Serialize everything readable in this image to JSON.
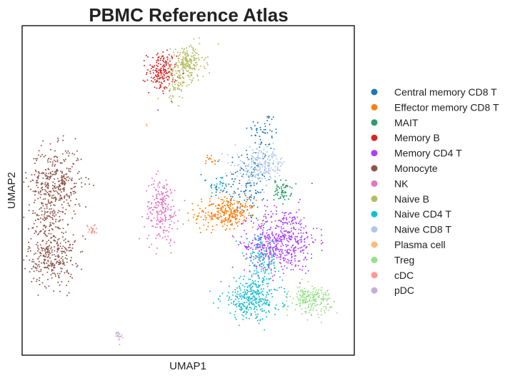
{
  "chart_data": {
    "type": "scatter",
    "title": "PBMC Reference Atlas",
    "xlabel": "UMAP1",
    "ylabel": "UMAP2",
    "xlim": [
      0,
      100
    ],
    "ylim": [
      0,
      100
    ],
    "grid": false,
    "ticks": "none",
    "legend_position": "right-outside",
    "point_size": "tiny",
    "series": [
      {
        "name": "Central memory CD8 T",
        "color": "#1f77b4",
        "clusters": [
          {
            "cx": 68,
            "cy": 52,
            "sx": 3.5,
            "sy": 6,
            "n": 130
          },
          {
            "cx": 73,
            "cy": 68,
            "sx": 2.5,
            "sy": 3,
            "n": 50
          },
          {
            "cx": 60,
            "cy": 51,
            "sx": 2,
            "sy": 2,
            "n": 25
          }
        ]
      },
      {
        "name": "Effector memory CD8 T",
        "color": "#ff7f0e",
        "clusters": [
          {
            "cx": 60,
            "cy": 43,
            "sx": 4,
            "sy": 2.5,
            "n": 200
          },
          {
            "cx": 64,
            "cy": 43,
            "sx": 3,
            "sy": 2,
            "n": 90
          },
          {
            "cx": 57,
            "cy": 59,
            "sx": 1.2,
            "sy": 1.2,
            "n": 15
          }
        ]
      },
      {
        "name": "MAIT",
        "color": "#279e68",
        "clusters": [
          {
            "cx": 78.5,
            "cy": 50,
            "sx": 1.3,
            "sy": 1.5,
            "n": 60
          }
        ]
      },
      {
        "name": "Memory B",
        "color": "#d62728",
        "clusters": [
          {
            "cx": 42,
            "cy": 86,
            "sx": 2.2,
            "sy": 3,
            "n": 180
          }
        ]
      },
      {
        "name": "Memory CD4 T",
        "color": "#aa40fc",
        "clusters": [
          {
            "cx": 79,
            "cy": 35,
            "sx": 5,
            "sy": 5,
            "n": 420
          },
          {
            "cx": 73,
            "cy": 33,
            "sx": 3,
            "sy": 3,
            "n": 120
          }
        ]
      },
      {
        "name": "Monocyte",
        "color": "#8c564b",
        "clusters": [
          {
            "cx": 10,
            "cy": 52,
            "sx": 4,
            "sy": 5.5,
            "n": 380
          },
          {
            "cx": 9,
            "cy": 30,
            "sx": 3.5,
            "sy": 4.5,
            "n": 300
          },
          {
            "cx": 8,
            "cy": 42,
            "sx": 2.5,
            "sy": 3,
            "n": 80
          }
        ]
      },
      {
        "name": "NK",
        "color": "#e377c2",
        "clusters": [
          {
            "cx": 42,
            "cy": 44,
            "sx": 2.5,
            "sy": 5,
            "n": 230
          }
        ]
      },
      {
        "name": "Naive B",
        "color": "#b5bd61",
        "clusters": [
          {
            "cx": 50,
            "cy": 89,
            "sx": 2.5,
            "sy": 2.5,
            "n": 180
          },
          {
            "cx": 47,
            "cy": 83,
            "sx": 2,
            "sy": 3,
            "n": 80
          }
        ]
      },
      {
        "name": "Naive CD4 T",
        "color": "#17becf",
        "clusters": [
          {
            "cx": 69,
            "cy": 17,
            "sx": 4.5,
            "sy": 3,
            "n": 320
          },
          {
            "cx": 72,
            "cy": 28,
            "sx": 2.5,
            "sy": 4,
            "n": 140
          },
          {
            "cx": 58.5,
            "cy": 52,
            "sx": 1.2,
            "sy": 1.2,
            "n": 15
          }
        ]
      },
      {
        "name": "Naive CD8 T",
        "color": "#aec7e8",
        "clusters": [
          {
            "cx": 72,
            "cy": 58,
            "sx": 4,
            "sy": 2.5,
            "n": 180
          },
          {
            "cx": 71,
            "cy": 55,
            "sx": 2,
            "sy": 1.5,
            "n": 40
          }
        ]
      },
      {
        "name": "Plasma cell",
        "color": "#ffbb78",
        "clusters": [
          {
            "cx": 37.5,
            "cy": 70,
            "sx": 0.2,
            "sy": 0.3,
            "n": 3
          }
        ]
      },
      {
        "name": "Treg",
        "color": "#98df8a",
        "clusters": [
          {
            "cx": 87,
            "cy": 17,
            "sx": 3,
            "sy": 2,
            "n": 200
          }
        ]
      },
      {
        "name": "cDC",
        "color": "#ff9896",
        "clusters": [
          {
            "cx": 21,
            "cy": 38,
            "sx": 0.8,
            "sy": 0.8,
            "n": 25
          }
        ]
      },
      {
        "name": "pDC",
        "color": "#c5b0d5",
        "clusters": [
          {
            "cx": 29,
            "cy": 6.5,
            "sx": 0.5,
            "sy": 1,
            "n": 20
          }
        ]
      }
    ]
  }
}
